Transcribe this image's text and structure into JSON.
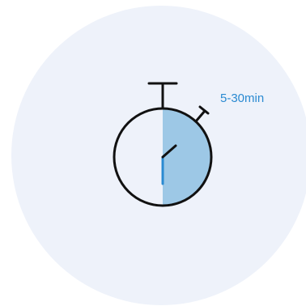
{
  "duration_label": "5-30min",
  "colors": {
    "background_circle": "#eef2fa",
    "elapsed_fill": "#9dc8e6",
    "accent": "#2a8ad1",
    "outline": "#111111"
  },
  "icon": {
    "name": "stopwatch-icon",
    "elapsed_fraction_min": 0.5
  }
}
